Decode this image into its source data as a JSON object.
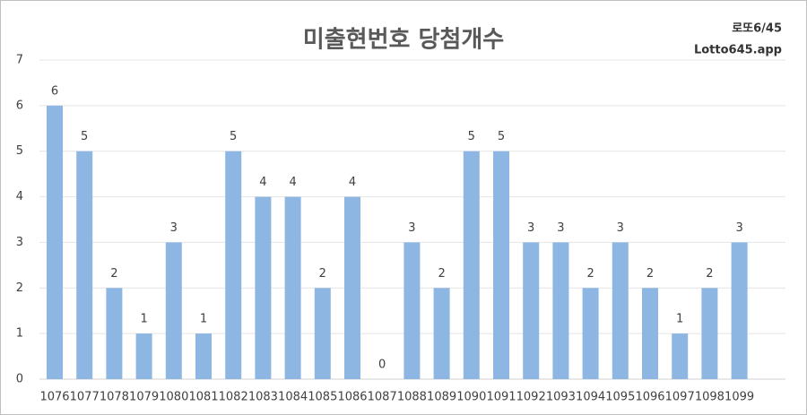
{
  "chart_data": {
    "type": "bar",
    "title": "미출현번호 당첨개수",
    "corner_texts": [
      "로또6/45",
      "Lotto645.app"
    ],
    "categories": [
      "1076",
      "1077",
      "1078",
      "1079",
      "1080",
      "1081",
      "1082",
      "1083",
      "1084",
      "1085",
      "1086",
      "1087",
      "1088",
      "1089",
      "1090",
      "1091",
      "1092",
      "1093",
      "1094",
      "1095",
      "1096",
      "1097",
      "1098",
      "1099"
    ],
    "values": [
      6,
      5,
      2,
      1,
      3,
      1,
      5,
      4,
      4,
      2,
      4,
      0,
      3,
      2,
      5,
      5,
      3,
      3,
      2,
      3,
      2,
      1,
      2,
      3
    ],
    "color": "#8db6e2",
    "ylim": [
      0,
      7
    ],
    "yticks": [
      0,
      1,
      2,
      3,
      4,
      5,
      6,
      7
    ],
    "grid": true
  }
}
